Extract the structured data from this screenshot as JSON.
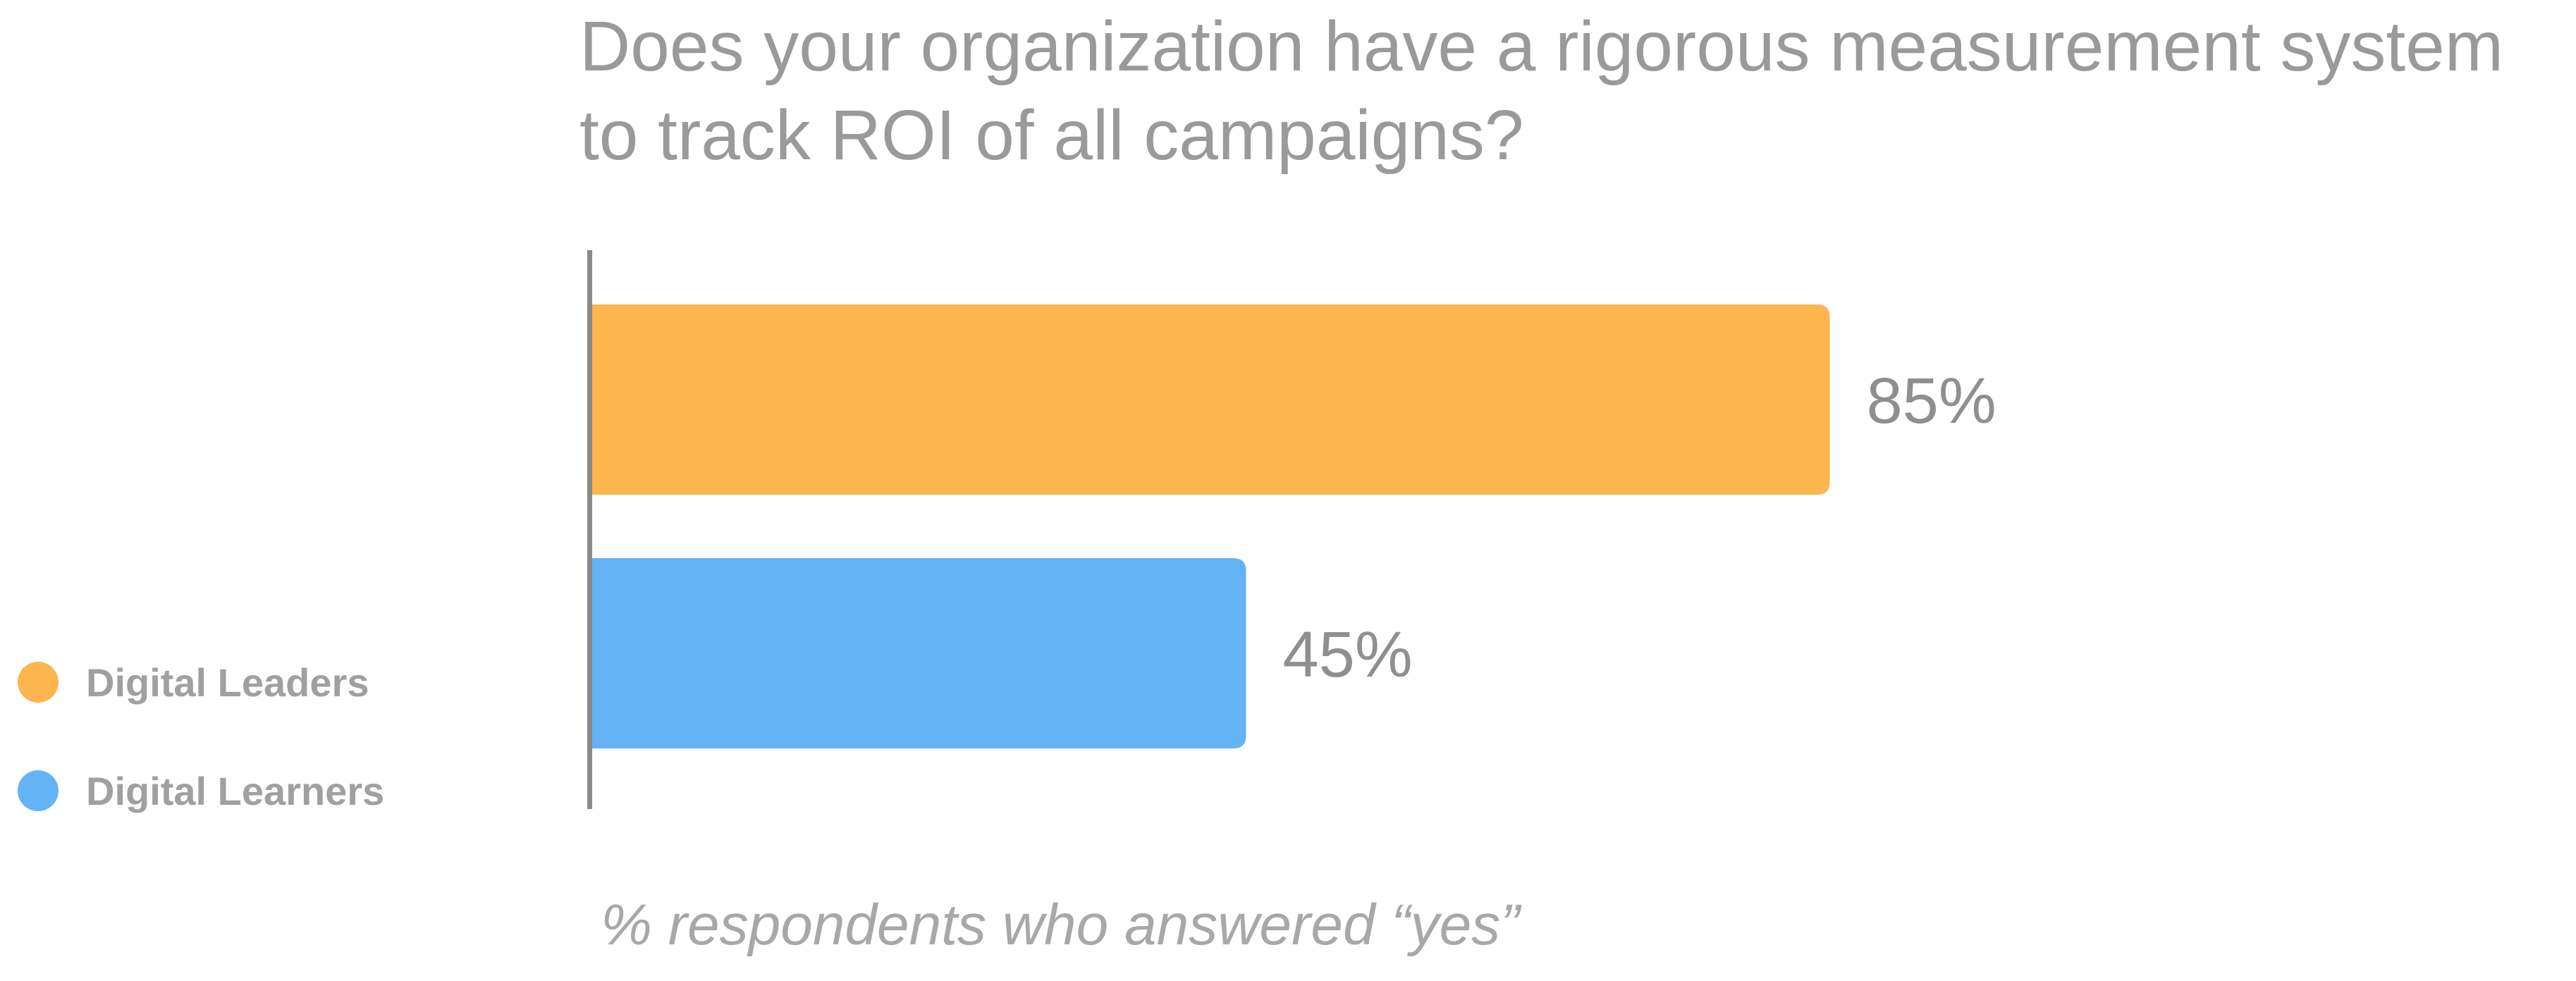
{
  "chart_data": {
    "type": "bar",
    "orientation": "horizontal",
    "title": "Does your organization have a rigorous measurement system to track ROI of all campaigns?",
    "title_lines": [
      "Does your organization have a rigorous measurement system",
      "to track ROI of all campaigns?"
    ],
    "subtitle": "% respondents who answered “yes”",
    "series": [
      {
        "name": "Digital Leaders",
        "value": 85,
        "label": "85%",
        "color": "#FDB54E"
      },
      {
        "name": "Digital Learners",
        "value": 45,
        "label": "45%",
        "color": "#64B4F5"
      }
    ],
    "xlim": [
      0,
      100
    ],
    "unit": "%",
    "grid": false,
    "legend_position": "left"
  },
  "colors": {
    "axis": "#8a8a8a",
    "text": "#9a9a9a"
  }
}
